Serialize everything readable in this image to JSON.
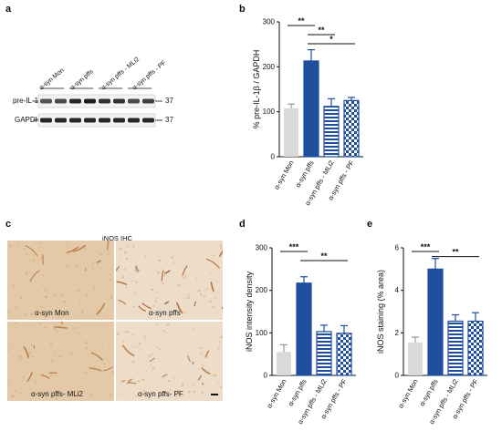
{
  "panels": {
    "a": {
      "letter": "a",
      "lanes": [
        "α-syn Mon",
        "α-syn pffs",
        "α-syn pffs - MLi2",
        "α-syn pffs - PF"
      ],
      "bands": [
        {
          "label": "pre-IL-1β",
          "mw": "37",
          "intensities": [
            0.7,
            0.75,
            0.9,
            0.95,
            0.85,
            0.85,
            0.75,
            0.8
          ]
        },
        {
          "label": "GAPDH",
          "mw": "37",
          "intensities": [
            0.9,
            0.9,
            0.9,
            0.9,
            0.9,
            0.9,
            0.9,
            0.9
          ]
        }
      ]
    },
    "c": {
      "letter": "c",
      "title": "iNOS IHC",
      "tiles": [
        "α-syn Mon",
        "α-syn pffs",
        "α-syn pffs- MLi2",
        "α-syn pffs- PF"
      ]
    }
  },
  "chart_data": [
    {
      "panel": "b",
      "type": "bar",
      "categories": [
        "α-syn Mon",
        "α-syn pffs",
        "α-syn pffs - MLi2",
        "α-syn pffs - PF"
      ],
      "values": [
        108,
        213,
        112,
        125
      ],
      "errors": [
        9,
        25,
        17,
        7
      ],
      "ylabel": "% pre-IL-1β / GAPDH",
      "ylim": [
        0,
        300
      ],
      "yticks": [
        0,
        100,
        200,
        300
      ],
      "colors": [
        "#d9d9d9",
        "#1f4e9c",
        "#1f4e9c",
        "#1f4e9c"
      ],
      "patterns": [
        "solid",
        "solid",
        "stripes",
        "checker"
      ],
      "significance": [
        {
          "from": 0,
          "to": 1,
          "label": "**"
        },
        {
          "from": 1,
          "to": 2,
          "label": "**"
        },
        {
          "from": 1,
          "to": 3,
          "label": "*"
        }
      ]
    },
    {
      "panel": "d",
      "type": "bar",
      "categories": [
        "α-syn Mon",
        "α-syn pffs",
        "α-syn pffs - MLi2",
        "α-syn pffs - PF"
      ],
      "values": [
        55,
        217,
        103,
        99
      ],
      "errors": [
        17,
        15,
        15,
        18
      ],
      "ylabel": "iNOS intensity density",
      "ylim": [
        0,
        300
      ],
      "yticks": [
        0,
        100,
        200,
        300
      ],
      "colors": [
        "#d9d9d9",
        "#1f4e9c",
        "#1f4e9c",
        "#1f4e9c"
      ],
      "patterns": [
        "solid",
        "solid",
        "stripes",
        "checker"
      ],
      "significance": [
        {
          "from": 0,
          "to": 1,
          "label": "***"
        },
        {
          "from": 1,
          "to": 3,
          "label": "**"
        }
      ]
    },
    {
      "panel": "e",
      "type": "bar",
      "categories": [
        "α-syn Mon",
        "α-syn pffs",
        "α-syn pffs - MLi2",
        "α-syn pffs - PF"
      ],
      "values": [
        1.55,
        5.0,
        2.55,
        2.55
      ],
      "errors": [
        0.25,
        0.5,
        0.3,
        0.4
      ],
      "ylabel": "iNOS staining (% area)",
      "ylim": [
        0,
        6
      ],
      "yticks": [
        0,
        2,
        4,
        6
      ],
      "colors": [
        "#d9d9d9",
        "#1f4e9c",
        "#1f4e9c",
        "#1f4e9c"
      ],
      "patterns": [
        "solid",
        "solid",
        "stripes",
        "checker"
      ],
      "significance": [
        {
          "from": 0,
          "to": 1,
          "label": "***"
        },
        {
          "from": 1,
          "to": 3,
          "label": "**"
        }
      ]
    }
  ]
}
